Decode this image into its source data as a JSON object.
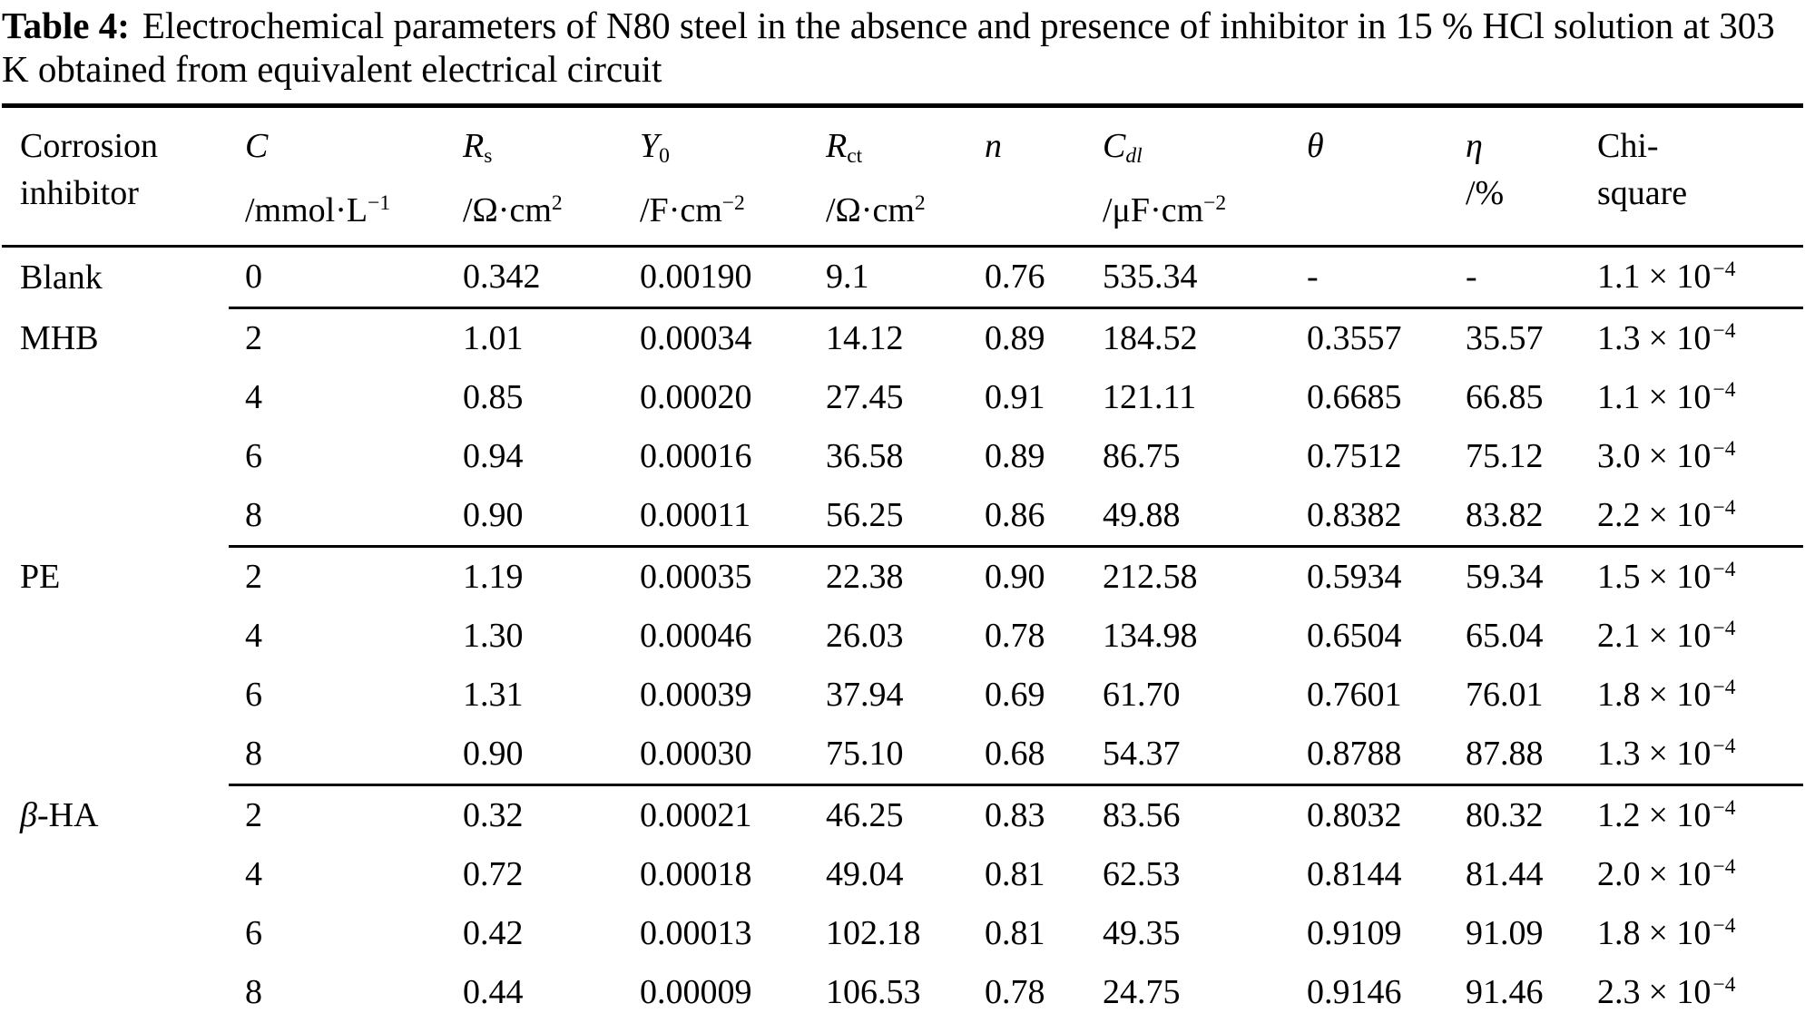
{
  "title": {
    "label": "Table 4:",
    "text": "Electrochemical parameters of N80 steel in the absence and presence of inhibitor in 15 % HCl solution at 303 K obtained from equivalent electrical circuit"
  },
  "symbols": {
    "times_ten": "× 10"
  },
  "table": {
    "columns": [
      {
        "line1": "Corrosion",
        "line2": "inhibitor"
      },
      {
        "sym": "C",
        "sub": "",
        "unit": "/mmol·L",
        "sup": "−1"
      },
      {
        "sym": "R",
        "sub": "s",
        "unit": "/Ω·cm",
        "sup": "2"
      },
      {
        "sym": "Y",
        "sub": "0",
        "unit": "/F·cm",
        "sup": "−2"
      },
      {
        "sym": "R",
        "sub": "ct",
        "unit": "/Ω·cm",
        "sup": "2"
      },
      {
        "sym": "n",
        "sub": "",
        "unit": "",
        "sup": ""
      },
      {
        "sym": "C",
        "sub": "dl",
        "unit": "/μF·cm",
        "sup": "−2"
      },
      {
        "sym": "θ",
        "sub": "",
        "unit": "",
        "sup": ""
      },
      {
        "sym": "η",
        "sub": "",
        "unit": "/%",
        "sup": ""
      },
      {
        "line1": "Chi-",
        "line2": "square"
      }
    ],
    "rows": [
      {
        "inh_i": "",
        "inh": "Blank",
        "c": "0",
        "rs": "0.342",
        "y0": "0.00190",
        "rct": "9.1",
        "n": "0.76",
        "cdl": "535.34",
        "theta": "-",
        "eta": "-",
        "chi_m": "1.1",
        "chi_e": "−4",
        "group_end": true
      },
      {
        "inh_i": "",
        "inh": "MHB",
        "c": "2",
        "rs": "1.01",
        "y0": "0.00034",
        "rct": "14.12",
        "n": "0.89",
        "cdl": "184.52",
        "theta": "0.3557",
        "eta": "35.57",
        "chi_m": "1.3",
        "chi_e": "−4",
        "group_end": false
      },
      {
        "inh_i": "",
        "inh": "",
        "c": "4",
        "rs": "0.85",
        "y0": "0.00020",
        "rct": "27.45",
        "n": "0.91",
        "cdl": "121.11",
        "theta": "0.6685",
        "eta": "66.85",
        "chi_m": "1.1",
        "chi_e": "−4",
        "group_end": false
      },
      {
        "inh_i": "",
        "inh": "",
        "c": "6",
        "rs": "0.94",
        "y0": "0.00016",
        "rct": "36.58",
        "n": "0.89",
        "cdl": "86.75",
        "theta": "0.7512",
        "eta": "75.12",
        "chi_m": "3.0",
        "chi_e": "−4",
        "group_end": false
      },
      {
        "inh_i": "",
        "inh": "",
        "c": "8",
        "rs": "0.90",
        "y0": "0.00011",
        "rct": "56.25",
        "n": "0.86",
        "cdl": "49.88",
        "theta": "0.8382",
        "eta": "83.82",
        "chi_m": "2.2",
        "chi_e": "−4",
        "group_end": true
      },
      {
        "inh_i": "",
        "inh": "PE",
        "c": "2",
        "rs": "1.19",
        "y0": "0.00035",
        "rct": "22.38",
        "n": "0.90",
        "cdl": "212.58",
        "theta": "0.5934",
        "eta": "59.34",
        "chi_m": "1.5",
        "chi_e": "−4",
        "group_end": false
      },
      {
        "inh_i": "",
        "inh": "",
        "c": "4",
        "rs": "1.30",
        "y0": "0.00046",
        "rct": "26.03",
        "n": "0.78",
        "cdl": "134.98",
        "theta": "0.6504",
        "eta": "65.04",
        "chi_m": "2.1",
        "chi_e": "−4",
        "group_end": false
      },
      {
        "inh_i": "",
        "inh": "",
        "c": "6",
        "rs": "1.31",
        "y0": "0.00039",
        "rct": "37.94",
        "n": "0.69",
        "cdl": "61.70",
        "theta": "0.7601",
        "eta": "76.01",
        "chi_m": "1.8",
        "chi_e": "−4",
        "group_end": false
      },
      {
        "inh_i": "",
        "inh": "",
        "c": "8",
        "rs": "0.90",
        "y0": "0.00030",
        "rct": "75.10",
        "n": "0.68",
        "cdl": "54.37",
        "theta": "0.8788",
        "eta": "87.88",
        "chi_m": "1.3",
        "chi_e": "−4",
        "group_end": true
      },
      {
        "inh_i": "β",
        "inh": "-HA",
        "c": "2",
        "rs": "0.32",
        "y0": "0.00021",
        "rct": "46.25",
        "n": "0.83",
        "cdl": "83.56",
        "theta": "0.8032",
        "eta": "80.32",
        "chi_m": "1.2",
        "chi_e": "−4",
        "group_end": false
      },
      {
        "inh_i": "",
        "inh": "",
        "c": "4",
        "rs": "0.72",
        "y0": "0.00018",
        "rct": "49.04",
        "n": "0.81",
        "cdl": "62.53",
        "theta": "0.8144",
        "eta": "81.44",
        "chi_m": "2.0",
        "chi_e": "−4",
        "group_end": false
      },
      {
        "inh_i": "",
        "inh": "",
        "c": "6",
        "rs": "0.42",
        "y0": "0.00013",
        "rct": "102.18",
        "n": "0.81",
        "cdl": "49.35",
        "theta": "0.9109",
        "eta": "91.09",
        "chi_m": "1.8",
        "chi_e": "−4",
        "group_end": false
      },
      {
        "inh_i": "",
        "inh": "",
        "c": "8",
        "rs": "0.44",
        "y0": "0.00009",
        "rct": "106.53",
        "n": "0.78",
        "cdl": "24.75",
        "theta": "0.9146",
        "eta": "91.46",
        "chi_m": "2.3",
        "chi_e": "−4",
        "group_end": false
      }
    ]
  }
}
